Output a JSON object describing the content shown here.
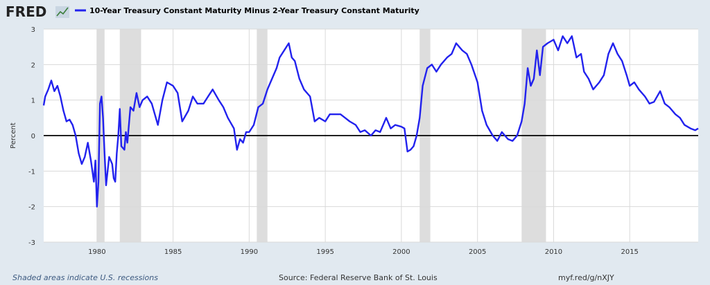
{
  "header": {
    "logo_text": "FRED",
    "logo_icon": "trend-chart-icon",
    "series_title": "10-Year Treasury Constant Maturity Minus 2-Year Treasury Constant Maturity"
  },
  "footer": {
    "recession_note": "Shaded areas indicate U.S. recessions",
    "source": "Source: Federal Reserve Bank of St. Louis",
    "short_url": "myf.red/g/nXJY"
  },
  "colors": {
    "line": "#2222ee",
    "recession": "#dddddd",
    "background": "#e1e9f0",
    "plot_bg": "#ffffff",
    "zero_line": "#000000",
    "grid": "#d9d9d9"
  },
  "chart_data": {
    "type": "line",
    "title": "10-Year Treasury Constant Maturity Minus 2-Year Treasury Constant Maturity",
    "xlabel": "",
    "ylabel": "Percent",
    "xlim": [
      1976.5,
      2019.5
    ],
    "ylim": [
      -3,
      3
    ],
    "x_ticks": [
      1980,
      1985,
      1990,
      1995,
      2000,
      2005,
      2010,
      2015
    ],
    "y_ticks": [
      -3,
      -2,
      -1,
      0,
      1,
      2,
      3
    ],
    "grid": true,
    "legend": "top-left",
    "recessions": [
      [
        1980.0,
        1980.5
      ],
      [
        1981.5,
        1982.9
      ],
      [
        1990.5,
        1991.2
      ],
      [
        2001.2,
        2001.9
      ],
      [
        2007.9,
        2009.5
      ]
    ],
    "series": [
      {
        "name": "10-Year Treasury Constant Maturity Minus 2-Year Treasury Constant Maturity",
        "x": [
          1976.5,
          1976.6,
          1976.8,
          1977.0,
          1977.2,
          1977.4,
          1977.6,
          1977.8,
          1978.0,
          1978.2,
          1978.4,
          1978.6,
          1978.8,
          1979.0,
          1979.2,
          1979.4,
          1979.6,
          1979.8,
          1979.9,
          1980.0,
          1980.1,
          1980.2,
          1980.3,
          1980.4,
          1980.5,
          1980.6,
          1980.8,
          1981.0,
          1981.1,
          1981.2,
          1981.3,
          1981.4,
          1981.5,
          1981.6,
          1981.8,
          1981.9,
          1982.0,
          1982.2,
          1982.4,
          1982.6,
          1982.8,
          1983.0,
          1983.3,
          1983.6,
          1984.0,
          1984.3,
          1984.6,
          1985.0,
          1985.3,
          1985.6,
          1986.0,
          1986.3,
          1986.6,
          1987.0,
          1987.3,
          1987.6,
          1988.0,
          1988.3,
          1988.6,
          1989.0,
          1989.2,
          1989.4,
          1989.6,
          1989.8,
          1990.0,
          1990.3,
          1990.6,
          1990.9,
          1991.2,
          1991.5,
          1991.8,
          1992.0,
          1992.3,
          1992.6,
          1992.8,
          1993.0,
          1993.3,
          1993.6,
          1994.0,
          1994.3,
          1994.6,
          1995.0,
          1995.3,
          1995.6,
          1996.0,
          1996.3,
          1996.6,
          1997.0,
          1997.3,
          1997.6,
          1998.0,
          1998.3,
          1998.6,
          1999.0,
          1999.3,
          1999.6,
          2000.0,
          2000.2,
          2000.4,
          2000.6,
          2000.8,
          2001.0,
          2001.2,
          2001.4,
          2001.7,
          2002.0,
          2002.3,
          2002.6,
          2003.0,
          2003.3,
          2003.6,
          2004.0,
          2004.3,
          2004.6,
          2005.0,
          2005.3,
          2005.6,
          2006.0,
          2006.3,
          2006.6,
          2007.0,
          2007.3,
          2007.6,
          2007.9,
          2008.1,
          2008.3,
          2008.5,
          2008.7,
          2008.9,
          2009.1,
          2009.3,
          2009.6,
          2010.0,
          2010.3,
          2010.6,
          2010.9,
          2011.2,
          2011.5,
          2011.8,
          2012.0,
          2012.3,
          2012.6,
          2013.0,
          2013.3,
          2013.6,
          2013.9,
          2014.2,
          2014.5,
          2014.8,
          2015.0,
          2015.3,
          2015.6,
          2016.0,
          2016.3,
          2016.6,
          2017.0,
          2017.3,
          2017.6,
          2018.0,
          2018.3,
          2018.6,
          2019.0,
          2019.3,
          2019.5
        ],
        "values": [
          0.85,
          1.1,
          1.3,
          1.55,
          1.25,
          1.4,
          1.1,
          0.7,
          0.4,
          0.45,
          0.3,
          0.0,
          -0.5,
          -0.8,
          -0.6,
          -0.2,
          -0.7,
          -1.3,
          -0.7,
          -2.0,
          -1.3,
          0.9,
          1.1,
          0.5,
          -0.5,
          -1.4,
          -0.6,
          -0.8,
          -1.2,
          -1.3,
          -0.5,
          0.0,
          0.75,
          -0.3,
          -0.4,
          0.1,
          -0.2,
          0.8,
          0.7,
          1.2,
          0.8,
          1.0,
          1.1,
          0.9,
          0.3,
          1.0,
          1.5,
          1.4,
          1.2,
          0.4,
          0.7,
          1.1,
          0.9,
          0.9,
          1.1,
          1.3,
          1.0,
          0.8,
          0.5,
          0.2,
          -0.4,
          -0.1,
          -0.2,
          0.1,
          0.1,
          0.3,
          0.8,
          0.9,
          1.3,
          1.6,
          1.9,
          2.2,
          2.4,
          2.6,
          2.2,
          2.1,
          1.6,
          1.3,
          1.1,
          0.4,
          0.5,
          0.4,
          0.6,
          0.6,
          0.6,
          0.5,
          0.4,
          0.3,
          0.1,
          0.15,
          0.0,
          0.15,
          0.1,
          0.5,
          0.2,
          0.3,
          0.25,
          0.2,
          -0.45,
          -0.4,
          -0.3,
          0.0,
          0.5,
          1.4,
          1.9,
          2.0,
          1.8,
          2.0,
          2.2,
          2.3,
          2.6,
          2.4,
          2.3,
          2.0,
          1.5,
          0.7,
          0.3,
          0.0,
          -0.15,
          0.1,
          -0.1,
          -0.15,
          0.0,
          0.4,
          0.9,
          1.9,
          1.4,
          1.6,
          2.4,
          1.7,
          2.5,
          2.6,
          2.7,
          2.4,
          2.8,
          2.6,
          2.8,
          2.2,
          2.3,
          1.8,
          1.6,
          1.3,
          1.5,
          1.7,
          2.3,
          2.6,
          2.3,
          2.1,
          1.7,
          1.4,
          1.5,
          1.3,
          1.1,
          0.9,
          0.95,
          1.25,
          0.9,
          0.8,
          0.6,
          0.5,
          0.3,
          0.2,
          0.15,
          0.2
        ]
      }
    ]
  }
}
